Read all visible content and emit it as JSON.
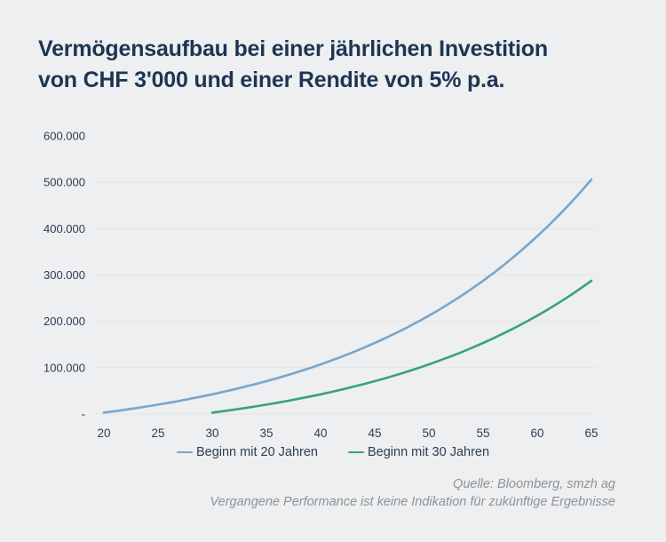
{
  "title": {
    "line1": "Vermögensaufbau bei einer jährlichen Investition",
    "line2": "von CHF 3'000 und einer Rendite von 5% p.a."
  },
  "source": {
    "line1": "Quelle: Bloomberg, smzh ag",
    "line2": "Vergangene Performance ist keine Indikation für zukünftige Ergebnisse"
  },
  "colors": {
    "background": "#edeff0",
    "title_text": "#1e3553",
    "axis_text": "#2d3e52",
    "gridline": "#e2e4e7",
    "series_beginn_20": "#7ba5c9",
    "series_beginn_30": "#38a377",
    "source_text": "#8f9397"
  },
  "chart_data": {
    "type": "line",
    "title": "Vermögensaufbau bei einer jährlichen Investition von CHF 3'000 und einer Rendite von 5% p.a.",
    "xlabel": "",
    "ylabel": "",
    "xlim": [
      20,
      65
    ],
    "ylim": [
      0,
      600000
    ],
    "grid": "horizontal",
    "legend_position": "bottom",
    "xticks": [
      20,
      25,
      30,
      35,
      40,
      45,
      50,
      55,
      60,
      65
    ],
    "yticks": [
      0,
      100000,
      200000,
      300000,
      400000,
      500000,
      600000
    ],
    "ytick_labels": [
      "-",
      "100.000",
      "200.000",
      "300.000",
      "400.000",
      "500.000",
      "600.000"
    ],
    "series": [
      {
        "name": "Beginn mit 20 Jahren",
        "color": "#7ba5c9",
        "start_age": 20,
        "values": [
          3000,
          6150,
          9458,
          12930,
          16577,
          20406,
          24426,
          28647,
          33080,
          37734,
          42620,
          47751,
          53139,
          58796,
          64736,
          70973,
          77521,
          84397,
          91617,
          99198,
          107158,
          115516,
          124291,
          133506,
          143181,
          153340,
          164007,
          175208,
          186968,
          199317,
          212282,
          225897,
          240191,
          255201,
          270961,
          287509,
          304884,
          323129,
          342285,
          362399,
          383519,
          405695,
          428980,
          453429,
          479101,
          506056
        ]
      },
      {
        "name": "Beginn mit 30 Jahren",
        "color": "#38a377",
        "start_age": 30,
        "values": [
          3000,
          6150,
          9458,
          12930,
          16577,
          20406,
          24426,
          28647,
          33080,
          37734,
          42620,
          47751,
          53139,
          58796,
          64736,
          70973,
          77521,
          84397,
          91617,
          99198,
          107158,
          115516,
          124291,
          133506,
          143181,
          153340,
          164007,
          175208,
          186968,
          199317,
          212282,
          225897,
          240191,
          255201,
          270961,
          287509
        ]
      }
    ]
  }
}
